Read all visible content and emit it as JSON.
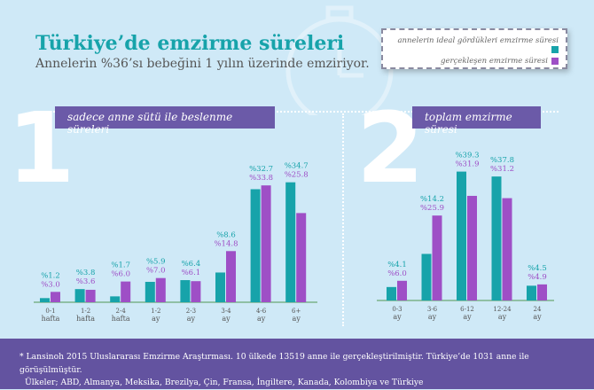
{
  "header": {
    "title": "Türkiye’de emzirme süreleri",
    "subtitle": "Annelerin %36’sı bebeğini 1 yılın üzerinde emziriyor."
  },
  "legend": {
    "ideal": "annelerin ideal gördükleri emzirme süresi",
    "actual": "gerçekleşen emzirme süresi"
  },
  "colors": {
    "ideal": "#17a3aa",
    "actual": "#9e4fc6",
    "banner": "#6b5aa8",
    "footer": "#6353a0",
    "background": "#cfe9f7"
  },
  "section1": {
    "number": "1",
    "label": "sadece anne sütü ile beslenme süreleri"
  },
  "section2": {
    "number": "2",
    "label": "toplam emzirme süresi"
  },
  "chart_data": [
    {
      "type": "bar",
      "categories": [
        [
          "0-1",
          "hafta"
        ],
        [
          "1-2",
          "hafta"
        ],
        [
          "2-4",
          "hafta"
        ],
        [
          "1-2",
          "ay"
        ],
        [
          "2-3",
          "ay"
        ],
        [
          "3-4",
          "ay"
        ],
        [
          "4-6",
          "ay"
        ],
        [
          "6+",
          "ay"
        ]
      ],
      "series": [
        {
          "name": "annelerin ideal gördükleri emzirme süresi",
          "values": [
            1.2,
            3.8,
            1.7,
            5.9,
            6.4,
            8.6,
            32.7,
            34.7
          ]
        },
        {
          "name": "gerçekleşen emzirme süresi",
          "values": [
            3.0,
            3.6,
            6.0,
            7.0,
            6.1,
            14.8,
            33.8,
            25.8
          ]
        }
      ],
      "value_prefix": "%"
    },
    {
      "type": "bar",
      "categories": [
        [
          "0-3",
          "ay"
        ],
        [
          "3-6",
          "ay"
        ],
        [
          "6-12",
          "ay"
        ],
        [
          "12-24",
          "ay"
        ],
        [
          "24",
          "ay"
        ]
      ],
      "series": [
        {
          "name": "annelerin ideal gördükleri emzirme süresi",
          "values": [
            4.1,
            14.2,
            39.3,
            37.8,
            4.5
          ]
        },
        {
          "name": "gerçekleşen emzirme süresi",
          "values": [
            6.0,
            25.9,
            31.9,
            31.2,
            4.9
          ]
        }
      ],
      "value_prefix": "%"
    }
  ],
  "footer": {
    "line1": "* Lansinoh 2015 Uluslararası Emzirme Araştırması. 10 ülkede 13519 anne ile gerçekleştirilmiştir. Türkiye’de 1031 anne ile görüşülmüştür.",
    "line2": "Ülkeler; ABD, Almanya, Meksika, Brezilya, Çin, Fransa, İngiltere, Kanada, Kolombiya ve Türkiye"
  }
}
